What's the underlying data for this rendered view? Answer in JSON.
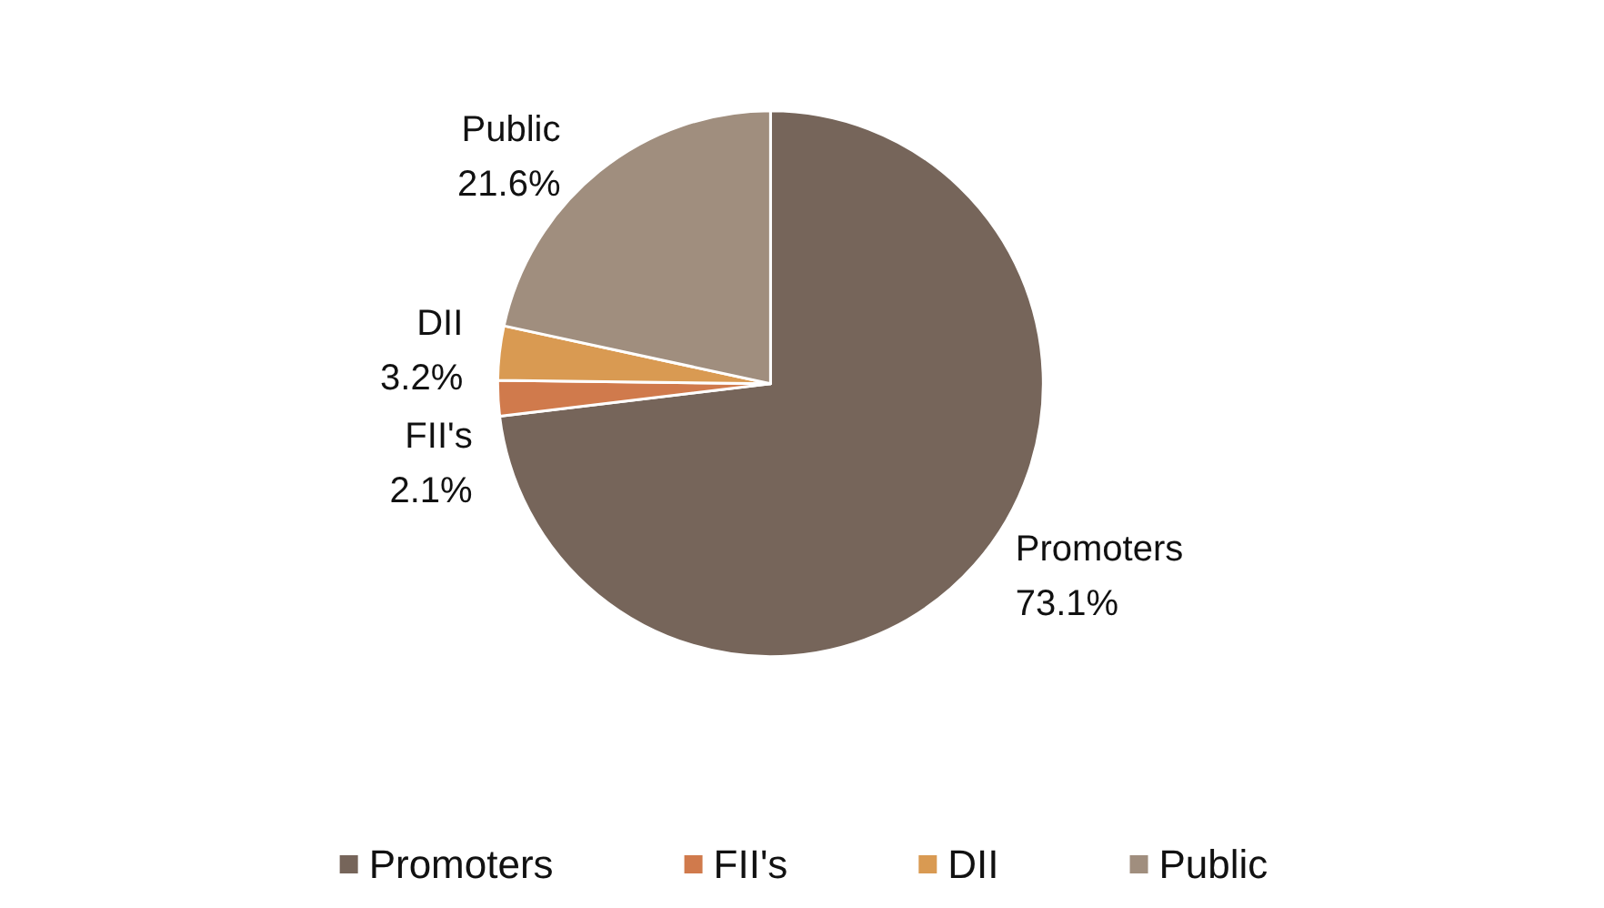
{
  "chart_data": {
    "type": "pie",
    "categories": [
      "Promoters",
      "FII's",
      "DII",
      "Public"
    ],
    "values": [
      73.1,
      2.1,
      3.2,
      21.6
    ],
    "colors": [
      "#76655a",
      "#d07a4c",
      "#d99a52",
      "#a08e7e"
    ],
    "value_labels": [
      "73.1%",
      "2.1%",
      "3.2%",
      "21.6%"
    ],
    "legend": "bottom"
  }
}
